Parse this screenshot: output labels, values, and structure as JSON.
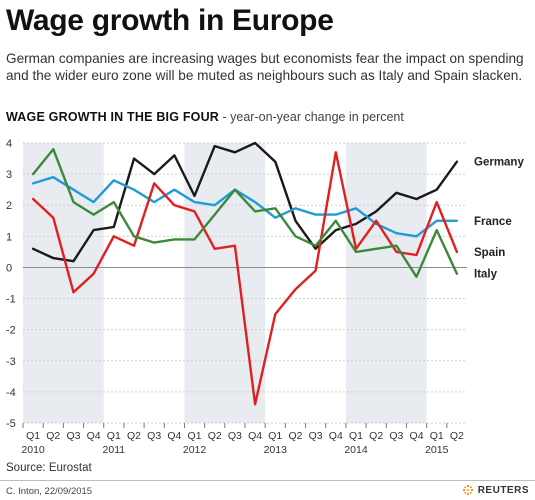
{
  "header": {
    "title": "Wage growth in Europe",
    "subtitle": "German companies are increasing wages but economists fear the impact on spending and the wider euro zone will be muted as neighbours such as Italy and Spain slacken."
  },
  "chart_title": {
    "main": "WAGE GROWTH IN THE BIG FOUR",
    "sub": " - year-on-year change in percent"
  },
  "footer": {
    "source": "Source: Eurostat",
    "credit": "C. Inton, 22/09/2015",
    "logo_text": "REUTERS"
  },
  "chart_data": {
    "type": "line",
    "title": "WAGE GROWTH IN THE BIG FOUR",
    "subtitle": "year-on-year change in percent",
    "categories": [
      "Q1",
      "Q2",
      "Q3",
      "Q4",
      "Q1",
      "Q2",
      "Q3",
      "Q4",
      "Q1",
      "Q2",
      "Q3",
      "Q4",
      "Q1",
      "Q2",
      "Q3",
      "Q4",
      "Q1",
      "Q2",
      "Q3",
      "Q4",
      "Q1",
      "Q2"
    ],
    "years": [
      {
        "label": "2010",
        "start_index": 0
      },
      {
        "label": "2011",
        "start_index": 4
      },
      {
        "label": "2012",
        "start_index": 8
      },
      {
        "label": "2013",
        "start_index": 12
      },
      {
        "label": "2014",
        "start_index": 16
      },
      {
        "label": "2015",
        "start_index": 20
      }
    ],
    "ylim": [
      -5,
      4
    ],
    "yticks": [
      -5,
      -4,
      -3,
      -2,
      -1,
      0,
      1,
      2,
      3,
      4
    ],
    "grid": true,
    "shaded_years": [
      "2010",
      "2012",
      "2014"
    ],
    "series": [
      {
        "name": "Germany",
        "color": "#1a1a1a",
        "values": [
          0.6,
          0.3,
          0.2,
          1.2,
          1.3,
          3.5,
          3.0,
          3.6,
          2.3,
          3.9,
          3.7,
          4.0,
          3.4,
          1.5,
          0.6,
          1.2,
          1.4,
          1.8,
          2.4,
          2.2,
          2.5,
          3.4
        ]
      },
      {
        "name": "France",
        "color": "#1f9bd7",
        "values": [
          2.7,
          2.9,
          2.5,
          2.1,
          2.8,
          2.5,
          2.1,
          2.5,
          2.1,
          2.0,
          2.5,
          2.1,
          1.6,
          1.9,
          1.7,
          1.7,
          1.9,
          1.4,
          1.1,
          1.0,
          1.5,
          1.5
        ]
      },
      {
        "name": "Spain",
        "color": "#e02020",
        "values": [
          2.2,
          1.6,
          -0.8,
          -0.2,
          1.0,
          0.7,
          2.7,
          2.0,
          1.8,
          0.6,
          0.7,
          -4.4,
          -1.5,
          -0.7,
          -0.1,
          3.7,
          0.6,
          1.5,
          0.5,
          0.4,
          2.1,
          0.5
        ]
      },
      {
        "name": "Italy",
        "color": "#3a8a3a",
        "values": [
          3.0,
          3.8,
          2.1,
          1.7,
          2.1,
          1.0,
          0.8,
          0.9,
          0.9,
          1.7,
          2.5,
          1.8,
          1.9,
          1.0,
          0.7,
          1.5,
          0.5,
          0.6,
          0.7,
          -0.3,
          1.2,
          -0.2
        ]
      }
    ]
  }
}
